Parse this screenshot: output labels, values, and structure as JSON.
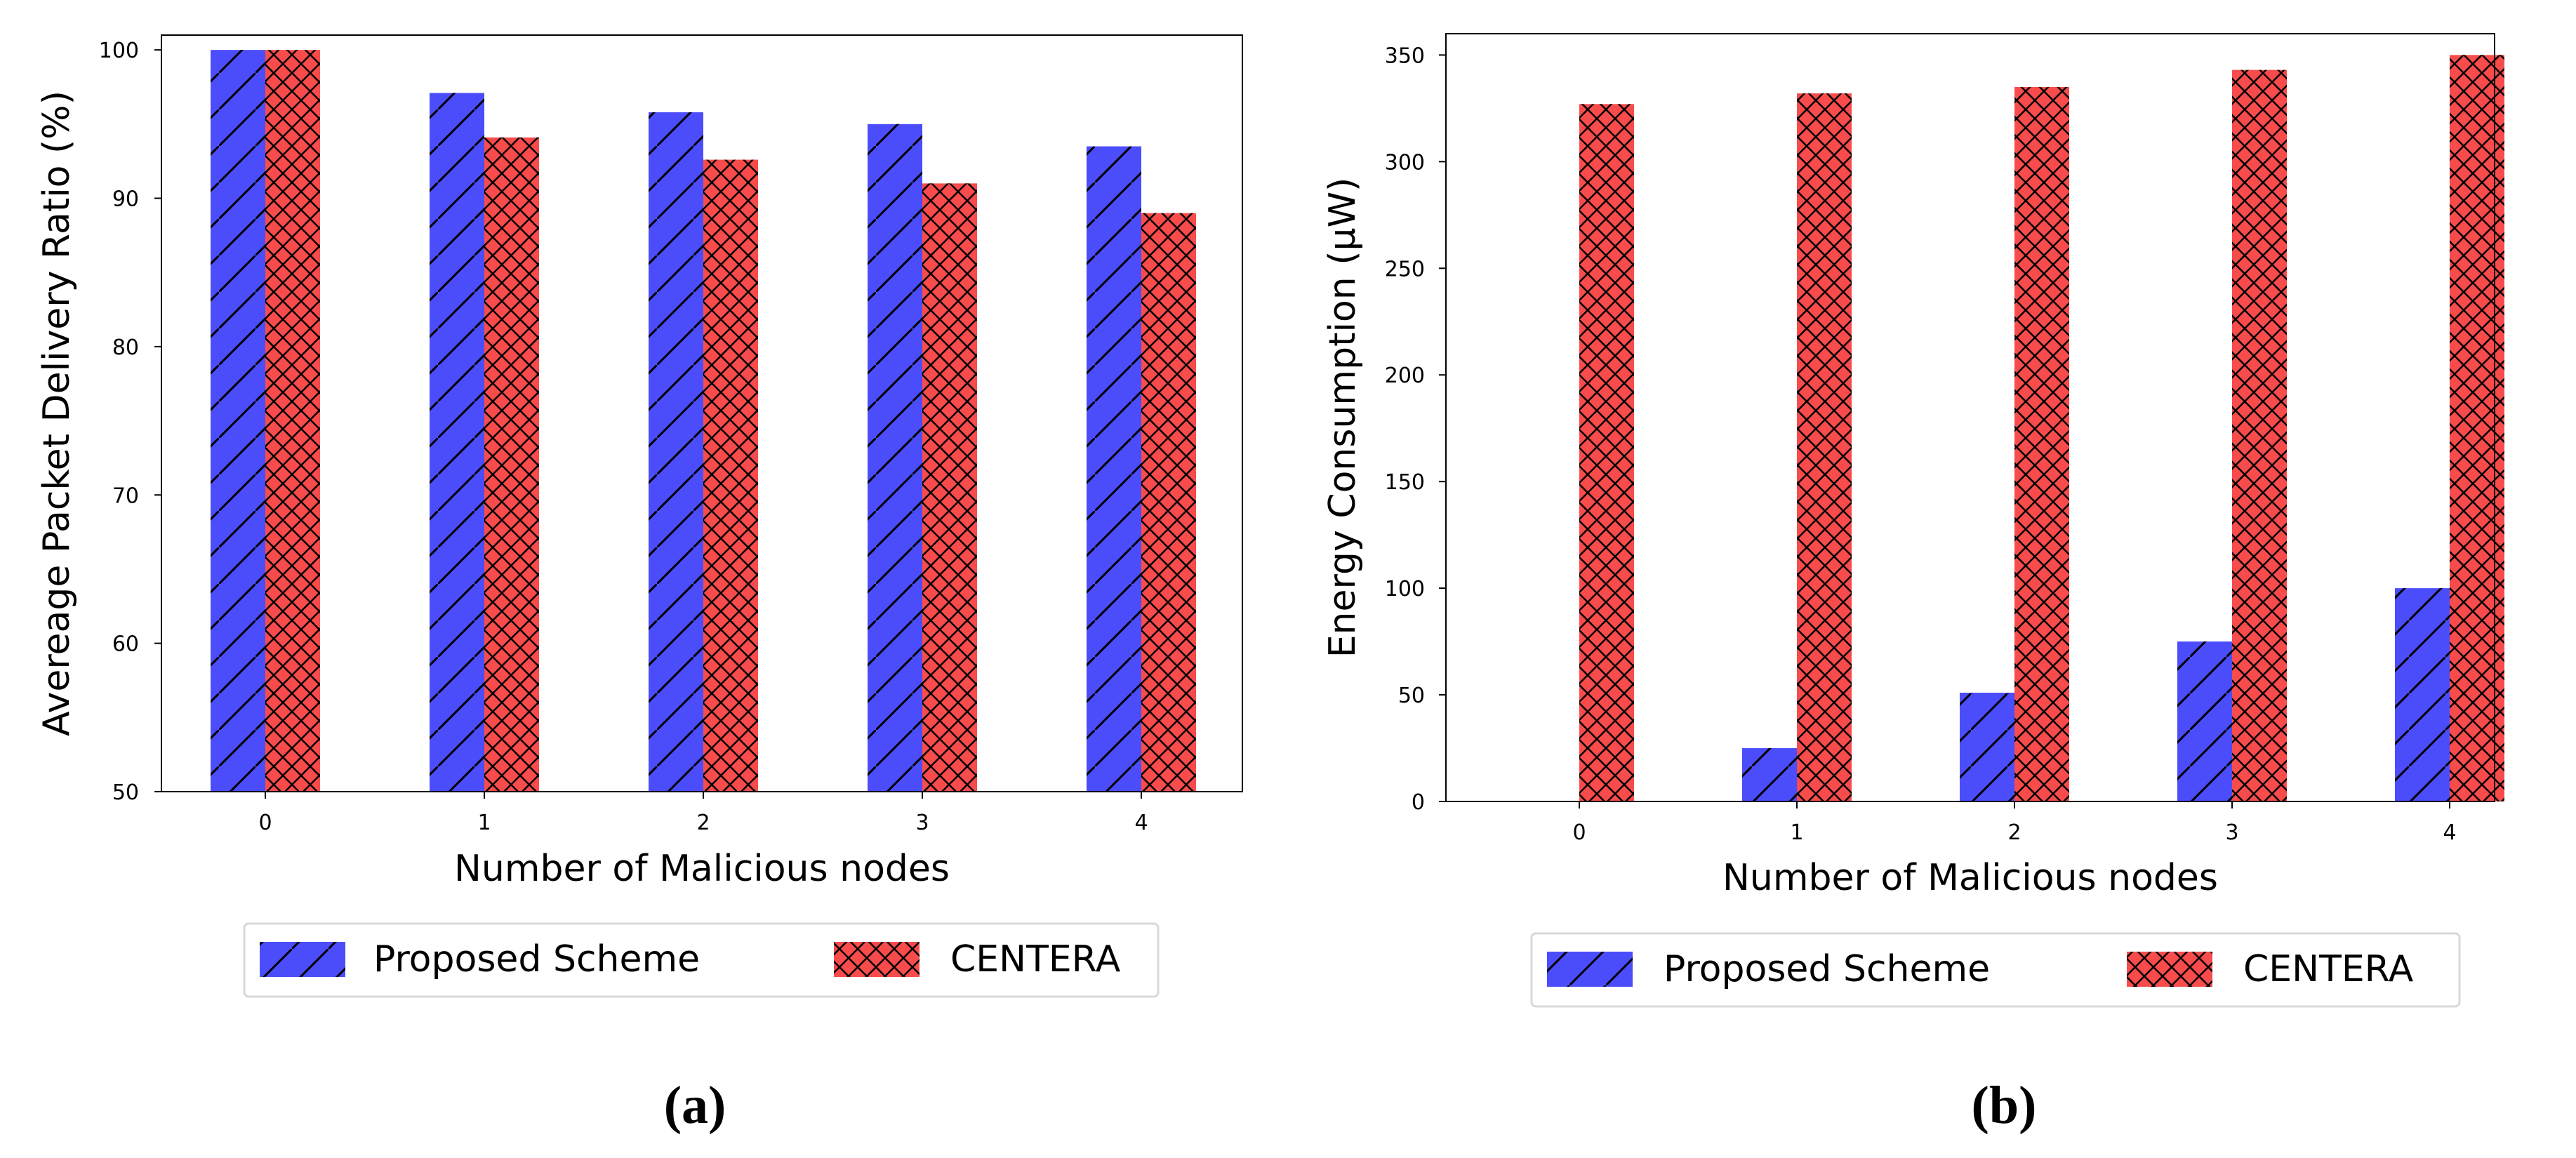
{
  "colors": {
    "proposed_fill": "#4b4dfb",
    "centera_fill": "#f84b4b",
    "hatch": "#000000"
  },
  "chart_data": [
    {
      "type": "bar",
      "caption": "(a)",
      "xlabel": "Number of Malicious nodes",
      "ylabel": "Avereage Packet Delivery Ratio (%)",
      "categories": [
        "0",
        "1",
        "2",
        "3",
        "4"
      ],
      "ylim": [
        50,
        101
      ],
      "yticks": [
        50,
        60,
        70,
        80,
        90,
        100
      ],
      "grid": false,
      "legend_placement": "below",
      "series": [
        {
          "name": "Proposed Scheme",
          "values": [
            100,
            97.1,
            95.8,
            95.0,
            93.5
          ],
          "color": "#4b4dfb",
          "hatch": "/"
        },
        {
          "name": "CENTERA",
          "values": [
            100,
            94.1,
            92.6,
            91.0,
            89.0
          ],
          "color": "#f84b4b",
          "hatch": "x"
        }
      ]
    },
    {
      "type": "bar",
      "caption": "(b)",
      "xlabel": "Number of Malicious nodes",
      "ylabel": "Energy Consumption (μW)",
      "categories": [
        "0",
        "1",
        "2",
        "3",
        "4"
      ],
      "ylim": [
        0,
        360
      ],
      "yticks": [
        0,
        50,
        100,
        150,
        200,
        250,
        300,
        350
      ],
      "grid": false,
      "legend_placement": "below",
      "series": [
        {
          "name": "Proposed Scheme",
          "values": [
            0,
            25,
            51,
            75,
            100
          ],
          "color": "#4b4dfb",
          "hatch": "/"
        },
        {
          "name": "CENTERA",
          "values": [
            327,
            332,
            335,
            343,
            350
          ],
          "color": "#f84b4b",
          "hatch": "x"
        }
      ]
    }
  ]
}
